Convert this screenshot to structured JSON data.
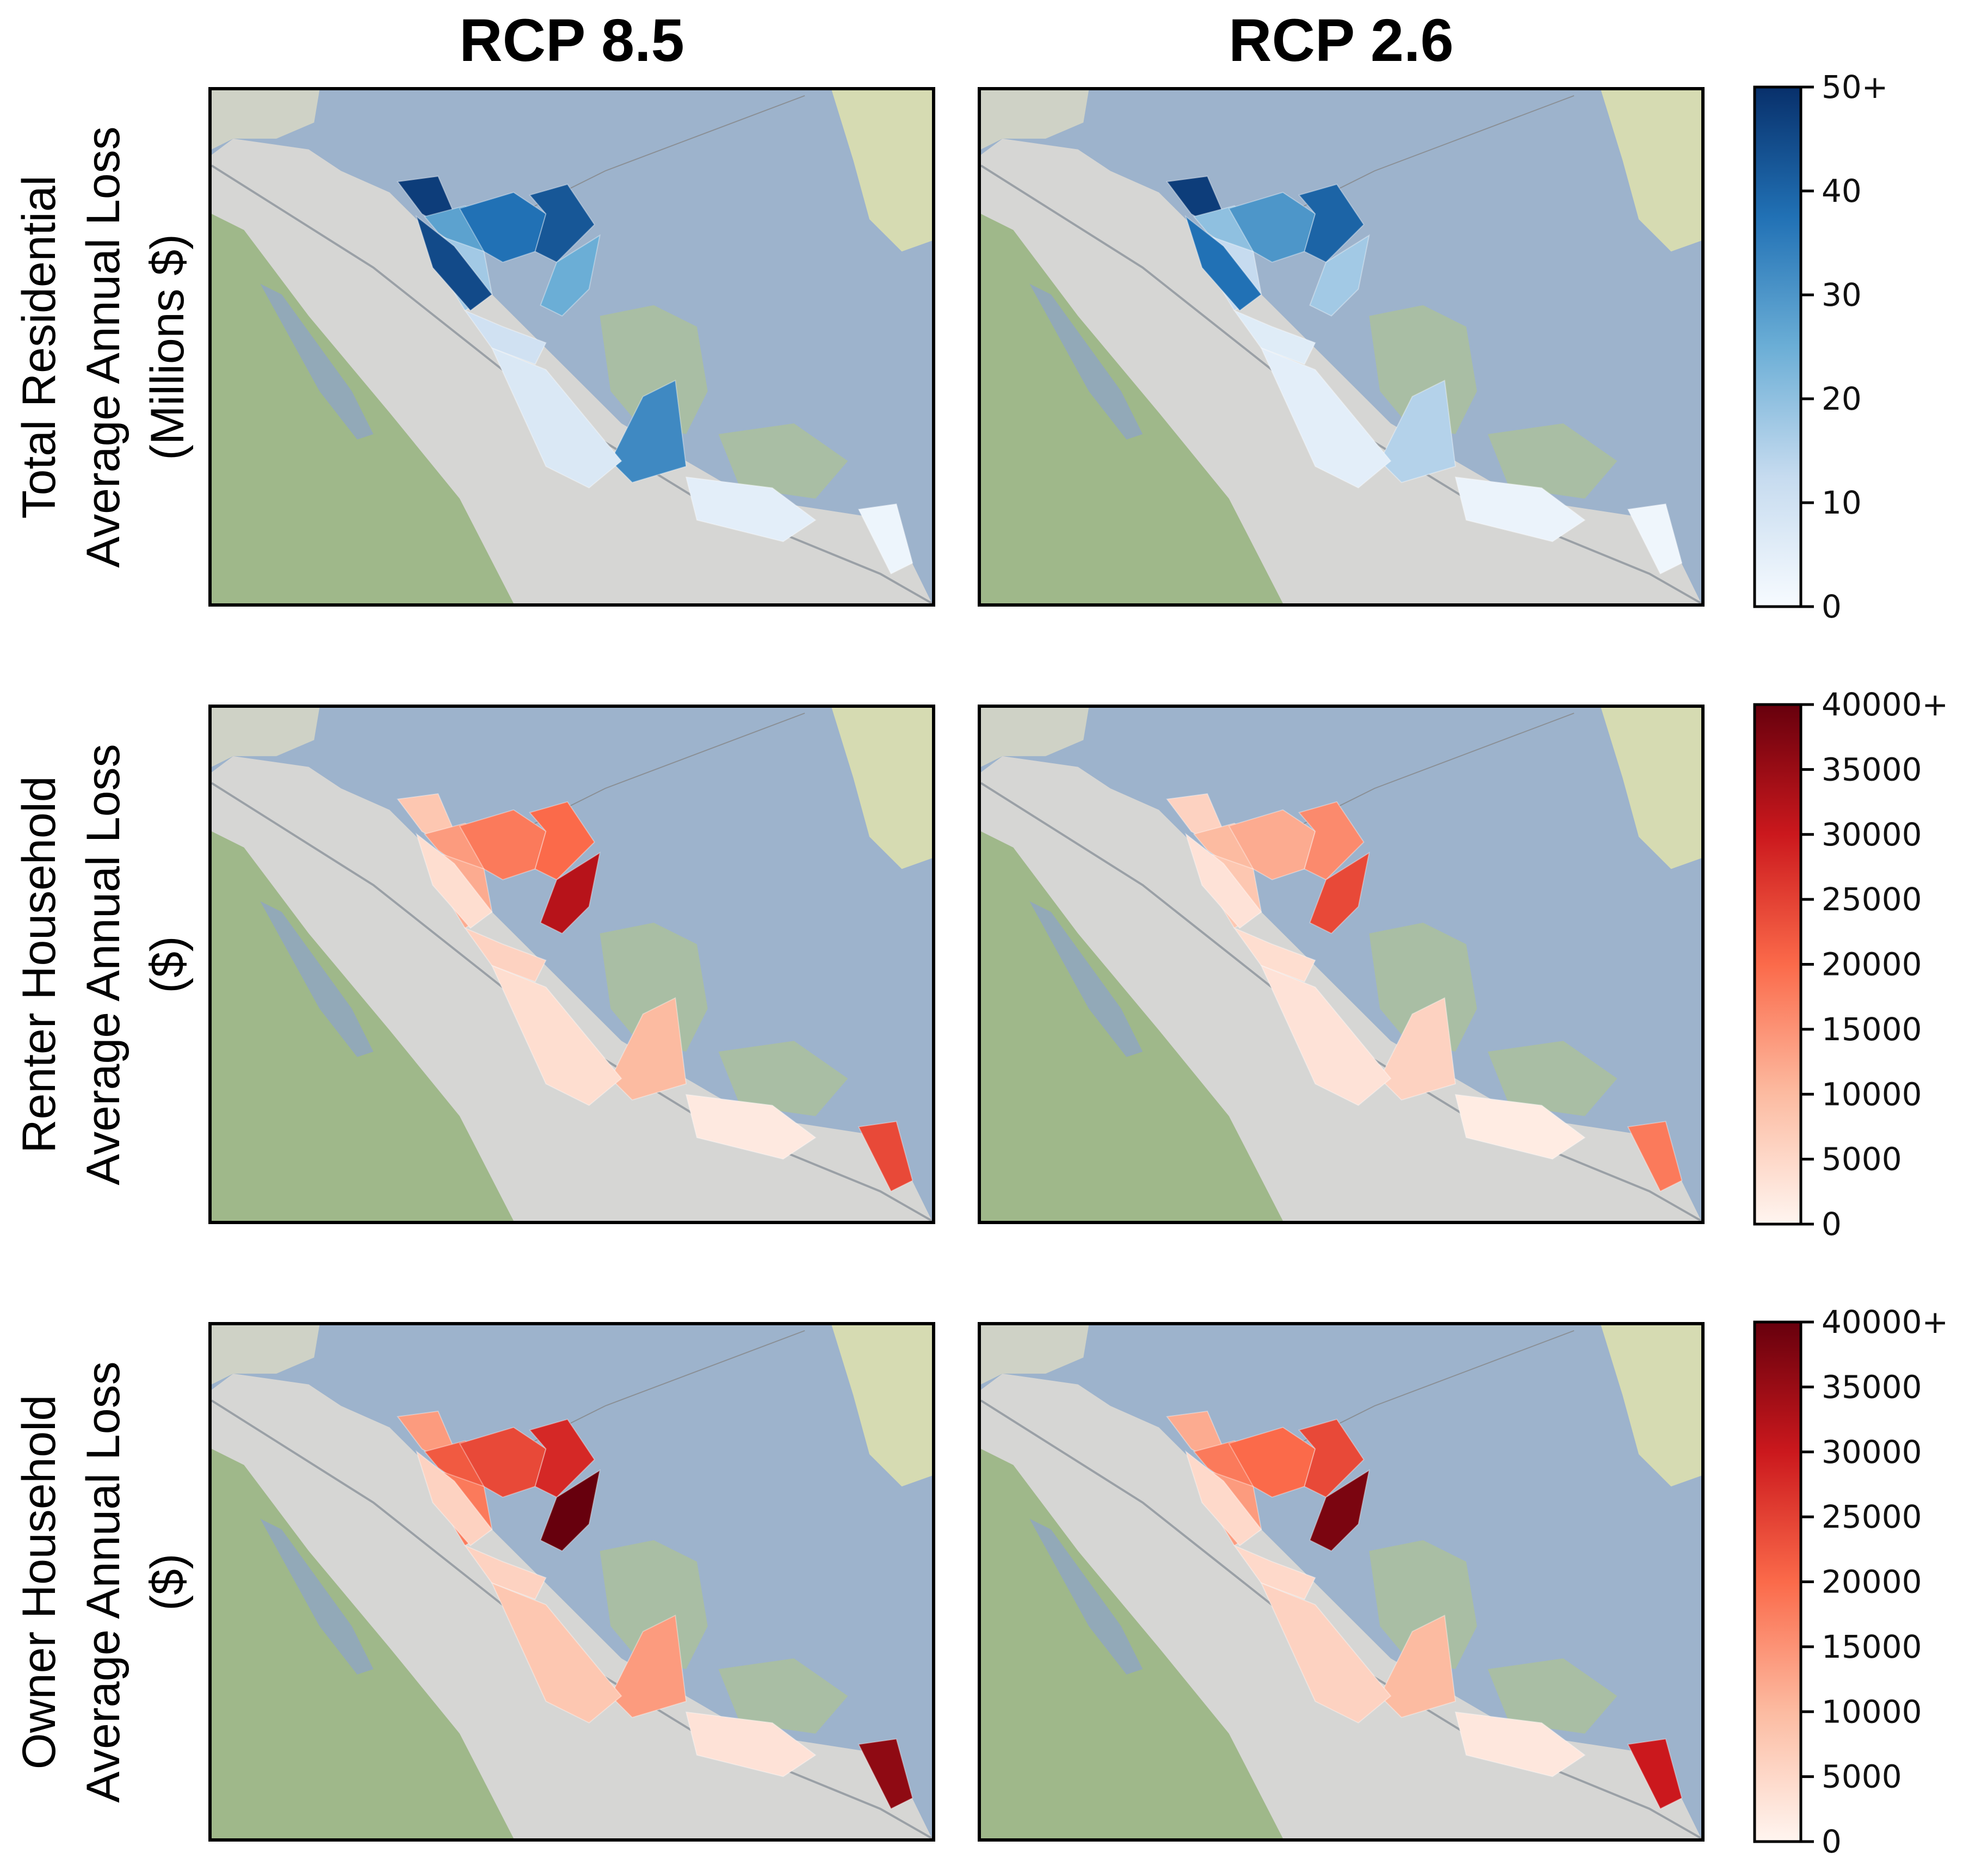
{
  "columns": [
    {
      "id": "rcp85",
      "title": "RCP 8.5"
    },
    {
      "id": "rcp26",
      "title": "RCP 2.6"
    }
  ],
  "rows": [
    {
      "id": "total",
      "label_lines": [
        "Total Residential",
        "Average Annual Loss",
        "(Millions $)"
      ],
      "palette": "blues"
    },
    {
      "id": "renter",
      "label_lines": [
        "Renter Household",
        "Average Annual Loss",
        "($)"
      ],
      "palette": "reds"
    },
    {
      "id": "owner",
      "label_lines": [
        "Owner Household",
        "Average Annual Loss",
        "($)"
      ],
      "palette": "reds"
    }
  ],
  "colorbars": [
    {
      "row": "total",
      "min": 0,
      "max": 50,
      "ticks": [
        "0",
        "10",
        "20",
        "30",
        "40",
        "50+"
      ],
      "tick_values": [
        0,
        10,
        20,
        30,
        40,
        50
      ],
      "colors": [
        "#f7fbff",
        "#c6dbef",
        "#6baed6",
        "#2171b5",
        "#08306b"
      ]
    },
    {
      "row": "renter",
      "min": 0,
      "max": 40000,
      "ticks": [
        "0",
        "5000",
        "10000",
        "15000",
        "20000",
        "25000",
        "30000",
        "35000",
        "40000+"
      ],
      "tick_values": [
        0,
        5000,
        10000,
        15000,
        20000,
        25000,
        30000,
        35000,
        40000
      ],
      "colors": [
        "#fff5f0",
        "#fcbba1",
        "#fb6a4a",
        "#cb181d",
        "#67000d"
      ]
    },
    {
      "row": "owner",
      "min": 0,
      "max": 40000,
      "ticks": [
        "0",
        "5000",
        "10000",
        "15000",
        "20000",
        "25000",
        "30000",
        "35000",
        "40000+"
      ],
      "tick_values": [
        0,
        5000,
        10000,
        15000,
        20000,
        25000,
        30000,
        35000,
        40000
      ],
      "colors": [
        "#fff5f0",
        "#fcbba1",
        "#fb6a4a",
        "#cb181d",
        "#67000d"
      ]
    }
  ],
  "map_colors": {
    "water": "#9db3cc",
    "urban": "#d6d6d4",
    "hills": "#9fb88a",
    "marsh": "#adc09a",
    "land_ne": "#d6dbb2"
  },
  "chart_data": {
    "type": "heatmap",
    "description_values": "choropleth of tract-level average annual flood loss; relative intensities (0-1 of colorbar max) per shaded region",
    "panels": [
      {
        "row": "total",
        "col": "rcp85",
        "regions": [
          0.95,
          0.55,
          0.75,
          0.85,
          0.35,
          0.2,
          0.5,
          0.65,
          0.15,
          0.9,
          0.1,
          0.05
        ]
      },
      {
        "row": "total",
        "col": "rcp26",
        "regions": [
          0.95,
          0.4,
          0.6,
          0.8,
          0.25,
          0.12,
          0.35,
          0.3,
          0.1,
          0.75,
          0.06,
          0.04
        ]
      },
      {
        "row": "renter",
        "col": "rcp85",
        "regions": [
          0.2,
          0.35,
          0.45,
          0.5,
          0.3,
          0.15,
          0.8,
          0.25,
          0.1,
          0.1,
          0.05,
          0.6
        ]
      },
      {
        "row": "renter",
        "col": "rcp26",
        "regions": [
          0.15,
          0.25,
          0.3,
          0.4,
          0.2,
          0.1,
          0.6,
          0.15,
          0.08,
          0.08,
          0.04,
          0.45
        ]
      },
      {
        "row": "owner",
        "col": "rcp85",
        "regions": [
          0.35,
          0.55,
          0.6,
          0.7,
          0.45,
          0.15,
          1.0,
          0.35,
          0.2,
          0.15,
          0.08,
          0.9
        ]
      },
      {
        "row": "owner",
        "col": "rcp26",
        "regions": [
          0.3,
          0.45,
          0.5,
          0.6,
          0.35,
          0.12,
          0.95,
          0.25,
          0.15,
          0.12,
          0.06,
          0.75
        ]
      }
    ]
  }
}
